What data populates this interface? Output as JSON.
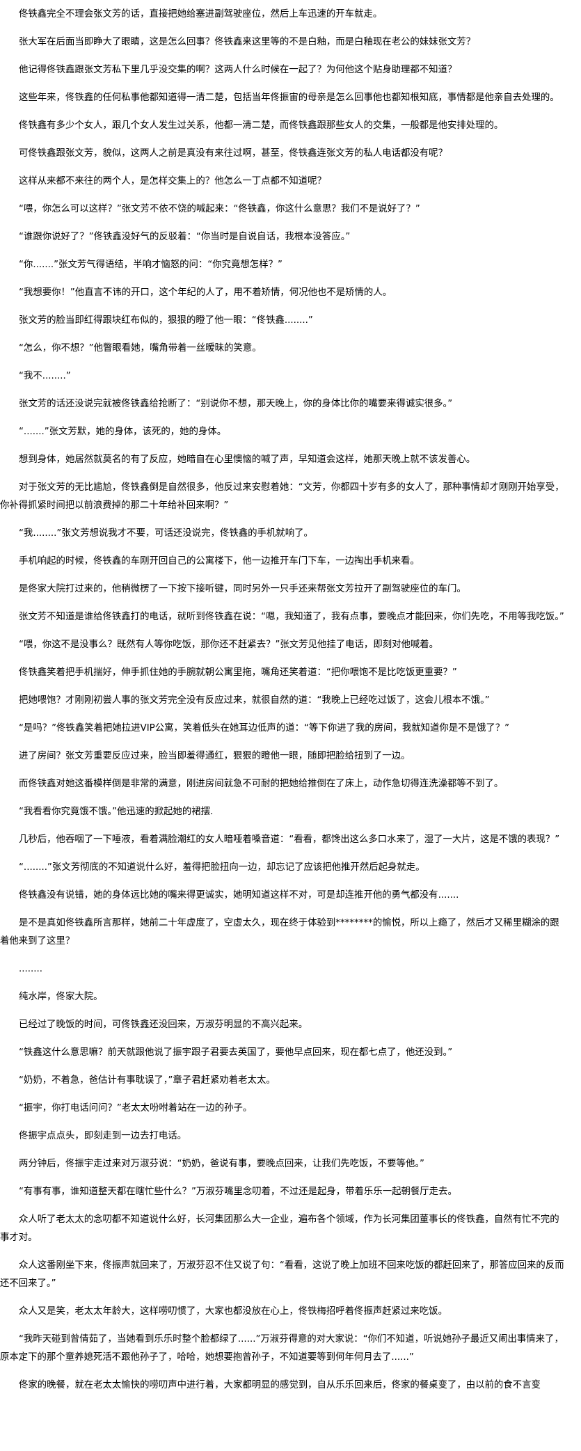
{
  "article": {
    "paragraphs": [
      "佟铁鑫完全不理会张文芳的话，直接把她给塞进副驾驶座位，然后上车迅速的开车就走。",
      "张大军在后面当即睁大了眼睛，这是怎么回事？佟铁鑫来这里等的不是白釉，而是白釉现在老公的妹妹张文芳？",
      "他记得佟铁鑫跟张文芳私下里几乎没交集的啊？这两人什么时候在一起了？为何他这个贴身助理都不知道？",
      "这些年来，佟铁鑫的任何私事他都知道得一清二楚，包括当年佟振宙的母亲是怎么回事他也都知根知底，事情都是他亲自去处理的。",
      "佟铁鑫有多少个女人，跟几个女人发生过关系，他都一清二楚，而佟铁鑫跟那些女人的交集，一般都是他安排处理的。",
      "可佟铁鑫跟张文芳，貌似，这两人之前是真没有来往过啊，甚至，佟铁鑫连张文芳的私人电话都没有呢？",
      "这样从来都不来往的两个人，是怎样交集上的？他怎么一丁点都不知道呢？",
      "“喂，你怎么可以这样？”张文芳不依不饶的喊起来：“佟铁鑫，你这什么意思？我们不是说好了？”",
      "“谁跟你说好了？”佟铁鑫没好气的反驳着：“你当时是自说自话，我根本没答应。”",
      "“你.......”张文芳气得语结，半响才恼怒的问：“你究竟想怎样？”",
      "“我想要你！”他直言不讳的开口，这个年纪的人了，用不着矫情，何况他也不是矫情的人。",
      "张文芳的脸当即红得跟块红布似的，狠狠的瞪了他一眼：“佟铁鑫........”",
      "“怎么，你不想？”他瞥眼看她，嘴角带着一丝暧昧的笑意。",
      "“我不........”",
      "张文芳的话还没说完就被佟铁鑫给抢断了：“别说你不想，那天晚上，你的身体比你的嘴要来得诚实很多。”",
      "“.......”张文芳默，她的身体，该死的，她的身体。",
      "想到身体，她居然就莫名的有了反应，她暗自在心里懊恼的喊了声，早知道会这样，她那天晚上就不该发善心。",
      "对于张文芳的无比尴尬，佟铁鑫倒是自然很多，他反过来安慰着她：“文芳，你都四十岁有多的女人了，那种事情却才刚刚开始享受，你补得抓紧时间把以前浪费掉的那二十年给补回来啊？”",
      "“我........”张文芳想说我才不要，可话还没说完，佟铁鑫的手机就响了。",
      "手机响起的时候，佟铁鑫的车刚开回自己的公寓楼下，他一边推开车门下车，一边掏出手机来看。",
      "是佟家大院打过来的，他稍微楞了一下按下接听键，同时另外一只手还来帮张文芳拉开了副驾驶座位的车门。",
      "张文芳不知道是谁给佟铁鑫打的电话，就听到佟铁鑫在说：“嗯，我知道了，我有点事，要晚点才能回来，你们先吃，不用等我吃饭。”",
      "“喂，你这不是没事么？既然有人等你吃饭，那你还不赶紧去？”张文芳见他挂了电话，即刻对他喊着。",
      "佟铁鑫笑着把手机揣好，伸手抓住她的手腕就朝公寓里拖，嘴角还笑着道：“把你喂饱不是比吃饭更重要？”",
      "把她喂饱？才刚刚初尝人事的张文芳完全没有反应过来，就很自然的道：“我晚上已经吃过饭了，这会儿根本不饿。”",
      "“是吗？”佟铁鑫笑着把她拉进VIP公寓，笑着低头在她耳边低声的道：“等下你进了我的房间，我就知道你是不是饿了？”",
      "进了房间？张文芳重要反应过来，脸当即羞得通红，狠狠的瞪他一眼，随即把脸给扭到了一边。",
      "而佟铁鑫对她这番模样倒是非常的满意，刚进房间就急不可耐的把她给推倒在了床上，动作急切得连洗澡都等不到了。",
      "“我看看你究竟饿不饿。”他迅速的掀起她的裙摆.",
      "几秒后，他吞咽了一下唾液，看着满脸潮红的女人暗哑着嗓音道：“看看，都馋出这么多口水来了，湿了一大片，这是不饿的表现？”",
      "“........”张文芳彻底的不知道说什么好，羞得把脸扭向一边，却忘记了应该把他推开然后起身就走。",
      "佟铁鑫没有说错，她的身体远比她的嘴来得更诚实，她明知道这样不对，可是却连推开他的勇气都没有.......",
      "是不是真如佟铁鑫所言那样，她前二十年虚度了，空虚太久，现在终于体验到********的愉悦，所以上瘾了，然后才又稀里糊涂的跟着他来到了这里？",
      "........",
      "纯水岸，佟家大院。",
      "已经过了晚饭的时间，可佟铁鑫还没回来，万淑芬明显的不高兴起来。",
      "“铁鑫这什么意思嘛？前天就跟他说了振宇跟子君要去英国了，要他早点回来，现在都七点了，他还没到。”",
      "“奶奶，不着急，爸估计有事耽误了，”章子君赶紧劝着老太太。",
      "“振宇，你打电话问问？”老太太吩咐着站在一边的孙子。",
      "佟振宇点点头，即刻走到一边去打电话。",
      "两分钟后，佟振宇走过来对万淑芬说：“奶奶，爸说有事，要晚点回来，让我们先吃饭，不要等他。”",
      "“有事有事，谁知道整天都在瞎忙些什么？”万淑芬嘴里念叨着，不过还是起身，带着乐乐一起朝餐厅走去。",
      "众人听了老太太的念叨都不知道说什么好，长河集团那么大一企业，遍布各个领域，作为长河集团董事长的佟铁鑫，自然有忙不完的事才对。",
      "众人这番刚坐下来，佟振声就回来了，万淑芬忍不住又说了句：“看看，这说了晚上加班不回来吃饭的都赶回来了，那答应回来的反而还不回来了。”",
      "众人又是笑，老太太年龄大，这样唠叨惯了，大家也都没放在心上，佟铁梅招呼着佟振声赶紧过来吃饭。",
      "“我昨天碰到曾倩茹了，当她看到乐乐时整个脸都绿了......”万淑芬得意的对大家说：“你们不知道，听说她孙子最近又闹出事情来了，原本定下的那个童养媳死活不跟他孙子了，哈哈，她想要抱曾孙子，不知道要等到何年何月去了......”",
      "佟家的晚餐，就在老太太愉快的唠叨声中进行着，大家都明显的感觉到，自从乐乐回来后，佟家的餐桌变了，由以前的食不言变"
    ]
  }
}
